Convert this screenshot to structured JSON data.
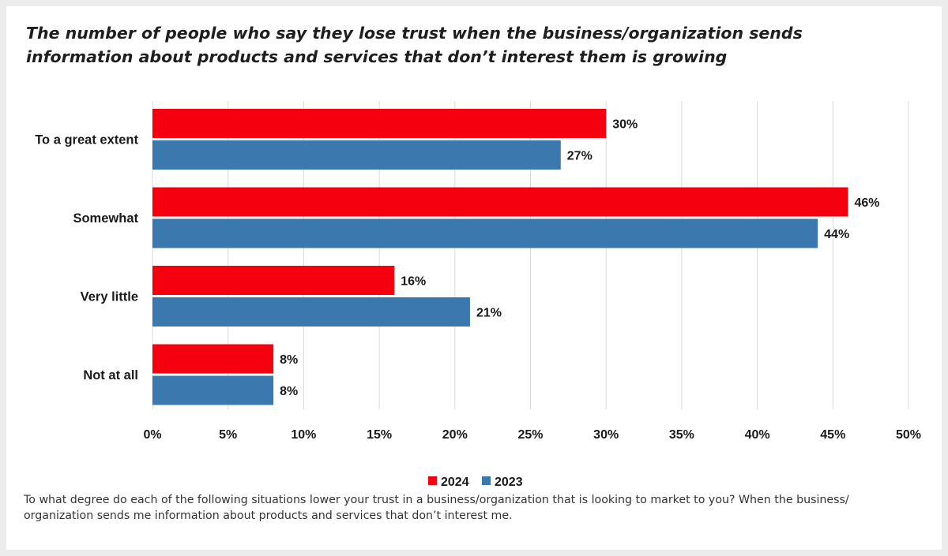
{
  "chart_data": {
    "type": "bar",
    "orientation": "horizontal",
    "title": "The number of people who say they lose trust when the business/organization sends information about products and services that don’t interest them is growing",
    "categories": [
      "To a great extent",
      "Somewhat",
      "Very little",
      "Not at all"
    ],
    "series": [
      {
        "name": "2024",
        "color": "#f5000f",
        "values": [
          30,
          46,
          16,
          8
        ],
        "labels": [
          "30%",
          "46%",
          "16%",
          "8%"
        ]
      },
      {
        "name": "2023",
        "color": "#3a78ae",
        "values": [
          27,
          44,
          21,
          8
        ],
        "labels": [
          "27%",
          "44%",
          "21%",
          "8%"
        ]
      }
    ],
    "xlim": [
      0,
      50
    ],
    "xticks": [
      0,
      5,
      10,
      15,
      20,
      25,
      30,
      35,
      40,
      45,
      50
    ],
    "xtick_labels": [
      "0%",
      "5%",
      "10%",
      "15%",
      "20%",
      "25%",
      "30%",
      "35%",
      "40%",
      "45%",
      "50%"
    ],
    "grid": true,
    "legend_position": "bottom-center",
    "xlabel": "",
    "ylabel": ""
  },
  "footnote": "To what degree do each of the following situations lower your trust in a business/organization that is looking to market to you? When the business/ organization sends me information about products and services that don’t interest me."
}
